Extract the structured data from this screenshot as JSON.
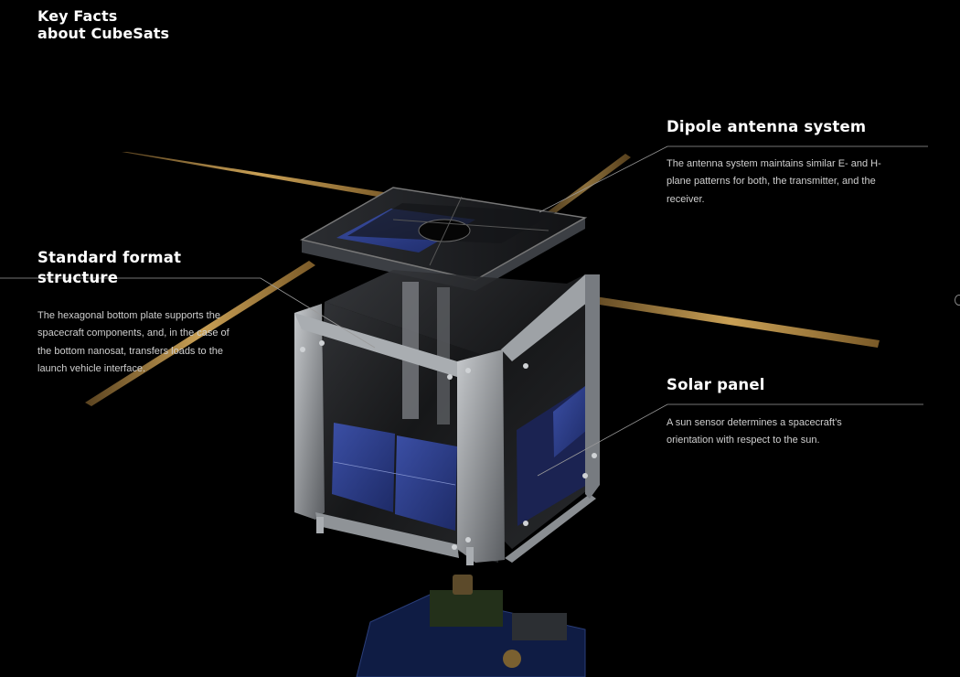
{
  "page": {
    "title": "Key Facts\nabout CubeSats"
  },
  "callouts": {
    "antenna": {
      "heading": "Dipole antenna system",
      "body": "The antenna system maintains similar E- and H-plane patterns for both, the transmitter, and the receiver."
    },
    "structure": {
      "heading": "Standard format structure",
      "body": "The hexagonal bottom plate supports the spacecraft components, and, in the case of the bottom nanosat, transfers loads to the launch vehicle interface."
    },
    "solar": {
      "heading": "Solar panel",
      "body": "A sun sensor determines a spacecraft’s orientation with respect to the sun."
    }
  },
  "colors": {
    "background": "#000000",
    "antenna": "#b08a45",
    "frame": "#8e9297",
    "solar_cell": "#2a3d86",
    "leader_line": "#9a9a9a"
  }
}
